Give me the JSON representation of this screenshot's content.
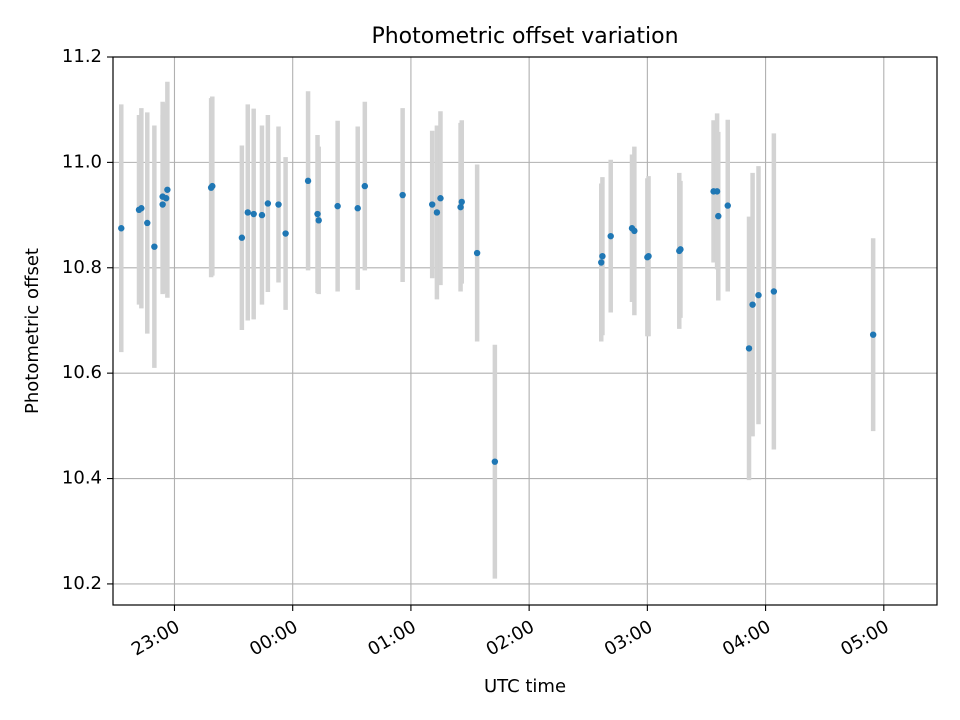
{
  "chart_data": {
    "type": "scatter",
    "title": "Photometric offset variation",
    "xlabel": "UTC time",
    "ylabel": "Photometric offset",
    "x_unit": "hours relative to 00:00 UTC (negative = before midnight)",
    "xlim": [
      -1.52,
      5.45
    ],
    "ylim": [
      10.16,
      11.2
    ],
    "grid": true,
    "x_ticks": [
      {
        "value": -1,
        "label": "23:00"
      },
      {
        "value": 0,
        "label": "00:00"
      },
      {
        "value": 1,
        "label": "01:00"
      },
      {
        "value": 2,
        "label": "02:00"
      },
      {
        "value": 3,
        "label": "03:00"
      },
      {
        "value": 4,
        "label": "04:00"
      },
      {
        "value": 5,
        "label": "05:00"
      }
    ],
    "y_ticks": [
      {
        "value": 10.2,
        "label": "10.2"
      },
      {
        "value": 10.4,
        "label": "10.4"
      },
      {
        "value": 10.6,
        "label": "10.6"
      },
      {
        "value": 10.8,
        "label": "10.8"
      },
      {
        "value": 11.0,
        "label": "11.0"
      },
      {
        "value": 11.2,
        "label": "11.2"
      }
    ],
    "series": [
      {
        "name": "Photometric offset",
        "marker_color": "#1f77b4",
        "errorbar_color": "#d3d3d3",
        "points": [
          {
            "x": -1.45,
            "y": 10.875,
            "err": 0.235
          },
          {
            "x": -1.3,
            "y": 10.91,
            "err": 0.18
          },
          {
            "x": -1.28,
            "y": 10.913,
            "err": 0.19
          },
          {
            "x": -1.23,
            "y": 10.885,
            "err": 0.21
          },
          {
            "x": -1.17,
            "y": 10.84,
            "err": 0.23
          },
          {
            "x": -1.1,
            "y": 10.92,
            "err": 0.17
          },
          {
            "x": -1.1,
            "y": 10.935,
            "err": 0.18
          },
          {
            "x": -1.07,
            "y": 10.932,
            "err": 0.18
          },
          {
            "x": -1.06,
            "y": 10.948,
            "err": 0.205
          },
          {
            "x": -0.69,
            "y": 10.952,
            "err": 0.17
          },
          {
            "x": -0.68,
            "y": 10.955,
            "err": 0.17
          },
          {
            "x": -0.43,
            "y": 10.857,
            "err": 0.175
          },
          {
            "x": -0.38,
            "y": 10.905,
            "err": 0.205
          },
          {
            "x": -0.33,
            "y": 10.902,
            "err": 0.2
          },
          {
            "x": -0.26,
            "y": 10.9,
            "err": 0.17
          },
          {
            "x": -0.21,
            "y": 10.922,
            "err": 0.168
          },
          {
            "x": -0.12,
            "y": 10.92,
            "err": 0.148
          },
          {
            "x": -0.06,
            "y": 10.865,
            "err": 0.145
          },
          {
            "x": 0.13,
            "y": 10.965,
            "err": 0.17
          },
          {
            "x": 0.21,
            "y": 10.902,
            "err": 0.15
          },
          {
            "x": 0.22,
            "y": 10.89,
            "err": 0.14
          },
          {
            "x": 0.38,
            "y": 10.917,
            "err": 0.162
          },
          {
            "x": 0.55,
            "y": 10.913,
            "err": 0.155
          },
          {
            "x": 0.61,
            "y": 10.955,
            "err": 0.16
          },
          {
            "x": 0.93,
            "y": 10.938,
            "err": 0.165
          },
          {
            "x": 1.18,
            "y": 10.92,
            "err": 0.14
          },
          {
            "x": 1.22,
            "y": 10.905,
            "err": 0.165
          },
          {
            "x": 1.25,
            "y": 10.932,
            "err": 0.165
          },
          {
            "x": 1.42,
            "y": 10.915,
            "err": 0.16
          },
          {
            "x": 1.43,
            "y": 10.925,
            "err": 0.155
          },
          {
            "x": 1.56,
            "y": 10.828,
            "err": 0.168
          },
          {
            "x": 1.71,
            "y": 10.432,
            "err": 0.222
          },
          {
            "x": 2.61,
            "y": 10.81,
            "err": 0.15
          },
          {
            "x": 2.62,
            "y": 10.822,
            "err": 0.15
          },
          {
            "x": 2.69,
            "y": 10.86,
            "err": 0.145
          },
          {
            "x": 2.87,
            "y": 10.875,
            "err": 0.14
          },
          {
            "x": 2.89,
            "y": 10.87,
            "err": 0.16
          },
          {
            "x": 3.0,
            "y": 10.82,
            "err": 0.15
          },
          {
            "x": 3.01,
            "y": 10.822,
            "err": 0.152
          },
          {
            "x": 3.27,
            "y": 10.832,
            "err": 0.148
          },
          {
            "x": 3.28,
            "y": 10.835,
            "err": 0.13
          },
          {
            "x": 3.56,
            "y": 10.945,
            "err": 0.135
          },
          {
            "x": 3.59,
            "y": 10.945,
            "err": 0.148
          },
          {
            "x": 3.6,
            "y": 10.898,
            "err": 0.16
          },
          {
            "x": 3.68,
            "y": 10.918,
            "err": 0.163
          },
          {
            "x": 3.86,
            "y": 10.647,
            "err": 0.25
          },
          {
            "x": 3.89,
            "y": 10.73,
            "err": 0.25
          },
          {
            "x": 3.94,
            "y": 10.748,
            "err": 0.245
          },
          {
            "x": 4.07,
            "y": 10.755,
            "err": 0.3
          },
          {
            "x": 4.91,
            "y": 10.673,
            "err": 0.183
          }
        ]
      }
    ]
  }
}
